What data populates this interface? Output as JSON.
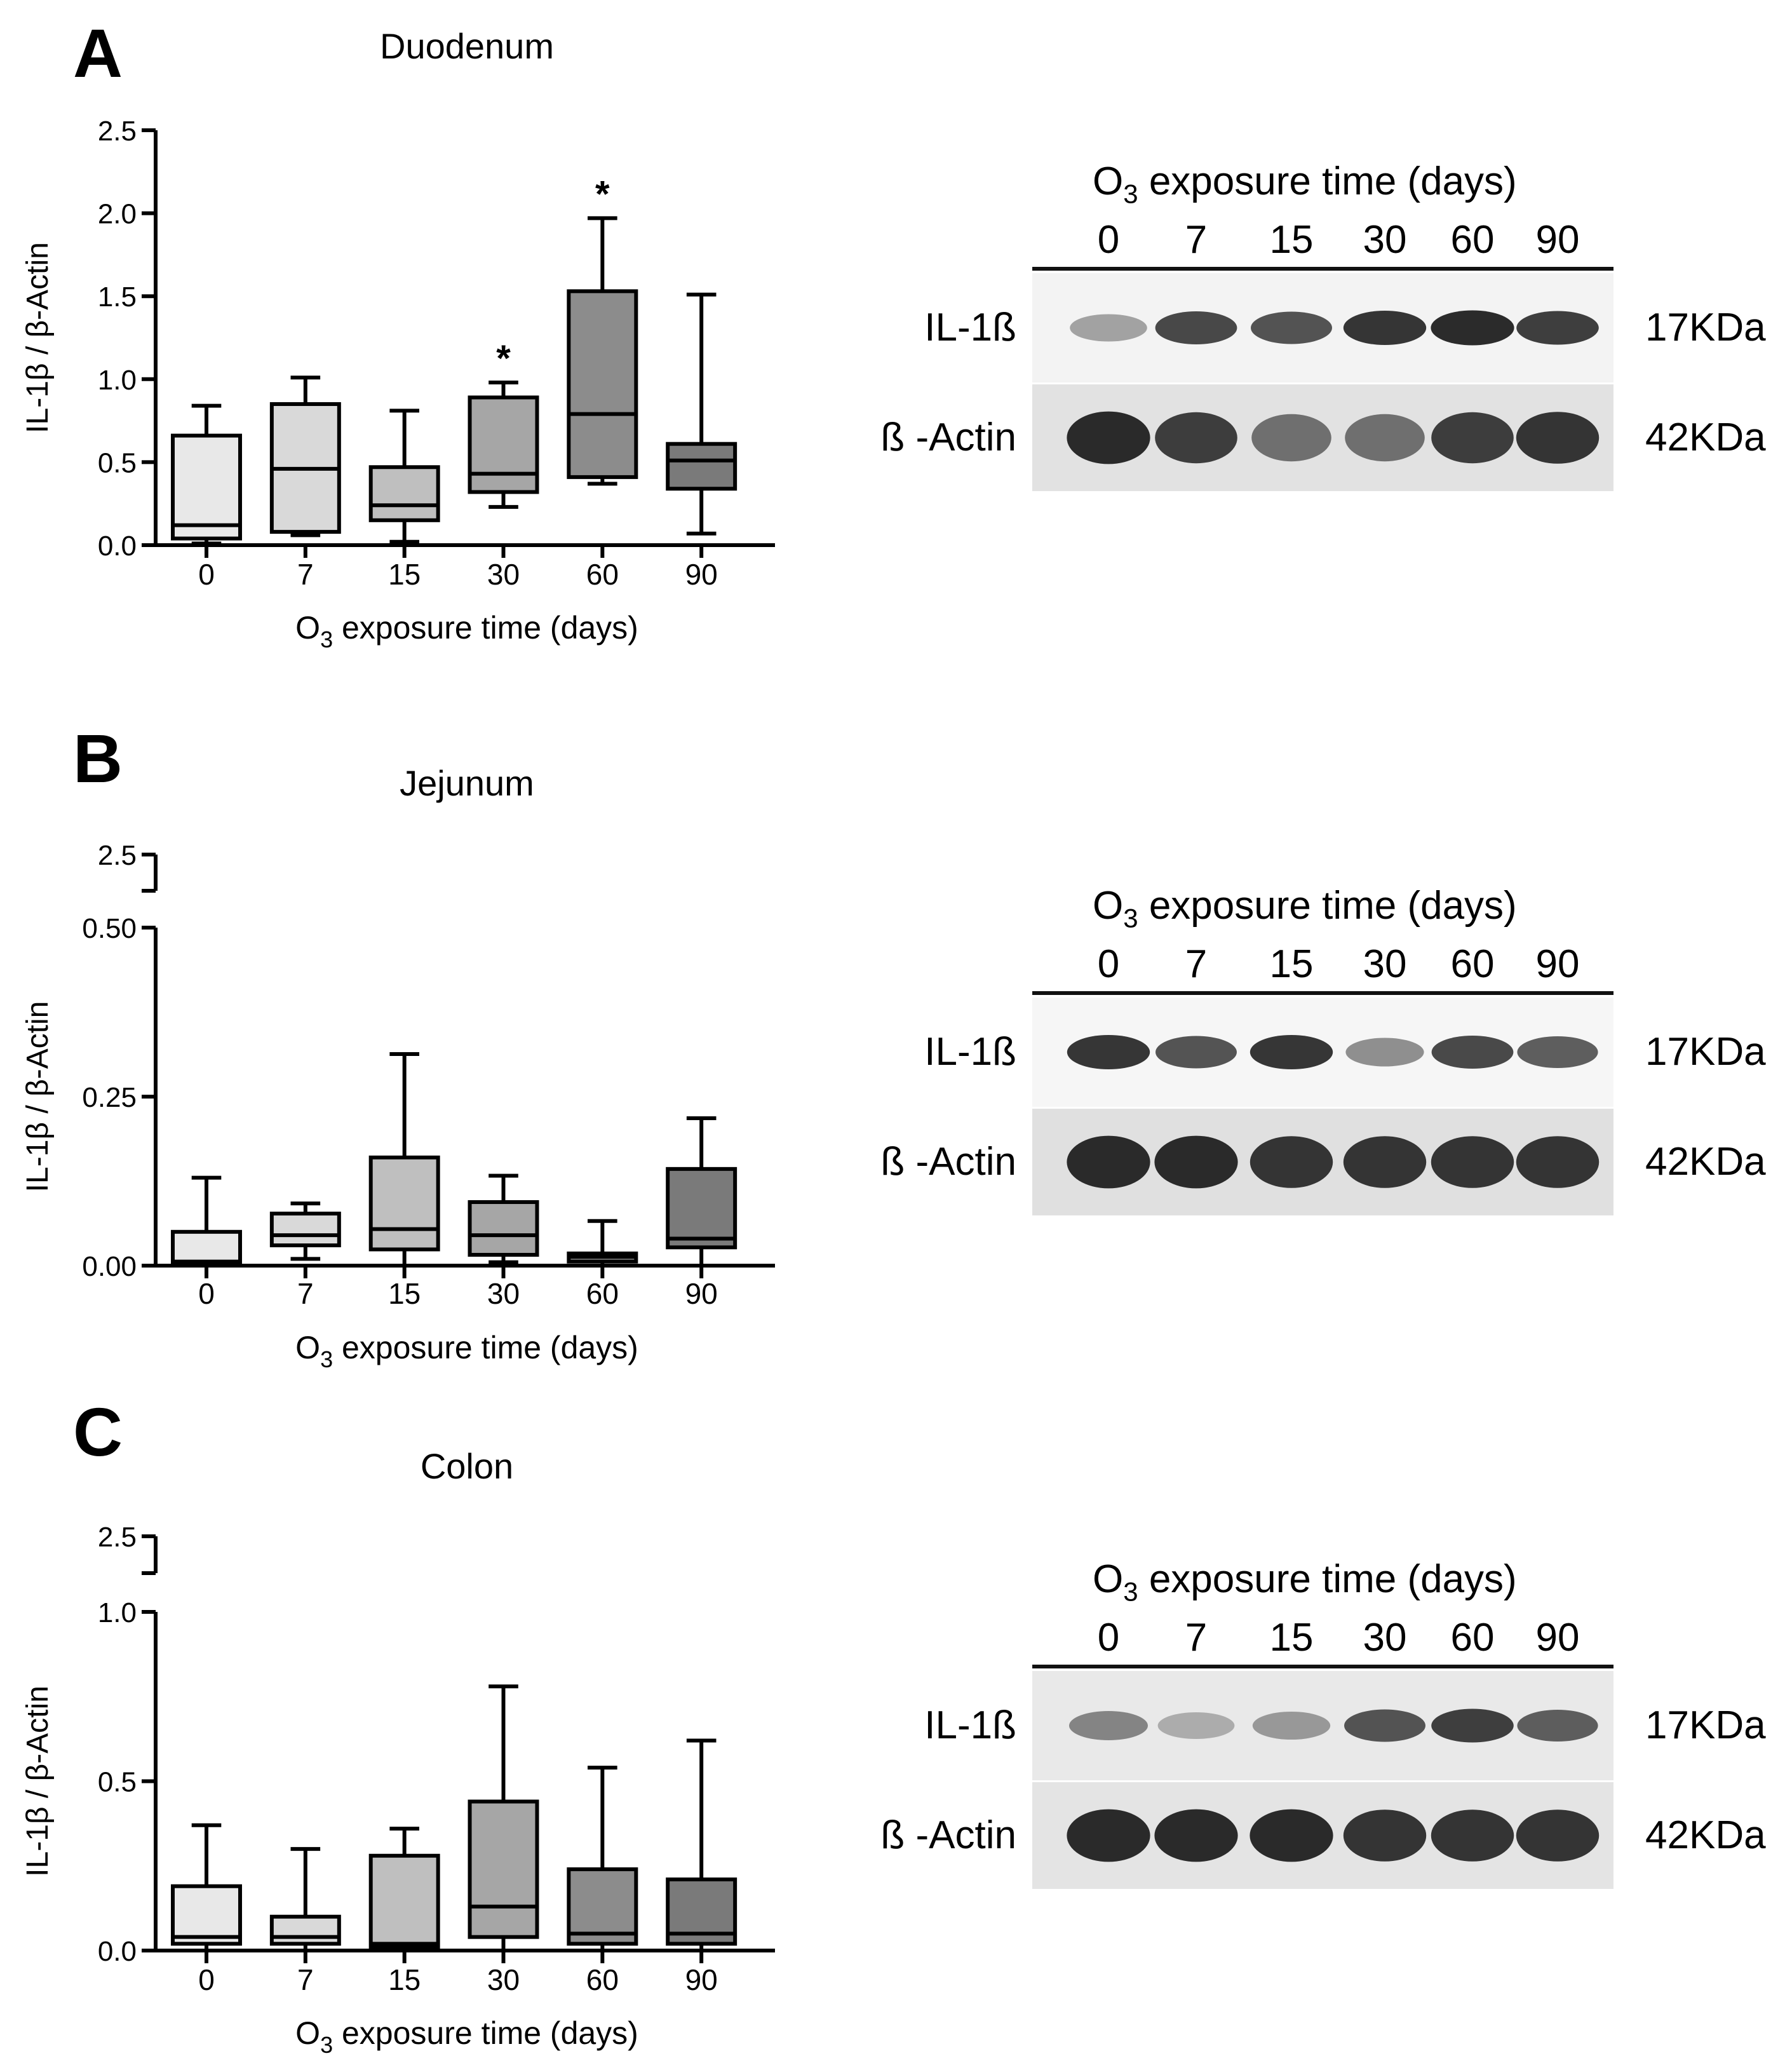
{
  "chart_data": [
    {
      "type": "boxplot",
      "panel": "A",
      "title": "Duodenum",
      "xlabel": "O3 exposure time (days)",
      "xlabel_main": "O",
      "xlabel_sub": "3",
      "xlabel_rest": " exposure time (days)",
      "ylabel": "IL-1β / β-Actin",
      "categories": [
        "0",
        "7",
        "15",
        "30",
        "60",
        "90"
      ],
      "yticks": [
        "0.0",
        "0.5",
        "1.0",
        "1.5",
        "2.0",
        "2.5"
      ],
      "ylim": [
        0,
        2.5
      ],
      "boxes": [
        {
          "min": 0.01,
          "q1": 0.04,
          "median": 0.12,
          "q3": 0.66,
          "max": 0.84,
          "fill": "#e8e8e8"
        },
        {
          "min": 0.06,
          "q1": 0.08,
          "median": 0.46,
          "q3": 0.85,
          "max": 1.01,
          "fill": "#d9d9d9"
        },
        {
          "min": 0.02,
          "q1": 0.15,
          "median": 0.24,
          "q3": 0.47,
          "max": 0.81,
          "fill": "#bfbfbf"
        },
        {
          "min": 0.23,
          "q1": 0.32,
          "median": 0.43,
          "q3": 0.89,
          "max": 0.98,
          "fill": "#a6a6a6"
        },
        {
          "min": 0.37,
          "q1": 0.41,
          "median": 0.79,
          "q3": 1.53,
          "max": 1.97,
          "fill": "#8c8c8c"
        },
        {
          "min": 0.07,
          "q1": 0.34,
          "median": 0.51,
          "q3": 0.61,
          "max": 1.51,
          "fill": "#7a7a7a"
        }
      ],
      "annotations": [
        {
          "category": "30",
          "text": "*"
        },
        {
          "category": "60",
          "text": "*"
        }
      ]
    },
    {
      "type": "boxplot",
      "panel": "B",
      "title": "Jejunum",
      "xlabel": "O3 exposure time (days)",
      "xlabel_main": "O",
      "xlabel_sub": "3",
      "xlabel_rest": " exposure time (days)",
      "ylabel": "IL-1β / β-Actin",
      "categories": [
        "0",
        "7",
        "15",
        "30",
        "60",
        "90"
      ],
      "yticks": [
        "0.00",
        "0.25",
        "0.50"
      ],
      "ytick_break": "2.5",
      "ylim": [
        0,
        0.5
      ],
      "boxes": [
        {
          "min": 0.0,
          "q1": 0.004,
          "median": 0.006,
          "q3": 0.05,
          "max": 0.13,
          "fill": "#e8e8e8"
        },
        {
          "min": 0.01,
          "q1": 0.03,
          "median": 0.045,
          "q3": 0.077,
          "max": 0.092,
          "fill": "#d9d9d9"
        },
        {
          "min": 0.0,
          "q1": 0.024,
          "median": 0.054,
          "q3": 0.16,
          "max": 0.313,
          "fill": "#bfbfbf"
        },
        {
          "min": 0.005,
          "q1": 0.016,
          "median": 0.045,
          "q3": 0.094,
          "max": 0.133,
          "fill": "#a6a6a6"
        },
        {
          "min": 0.0,
          "q1": 0.006,
          "median": 0.013,
          "q3": 0.018,
          "max": 0.066,
          "fill": "#8c8c8c"
        },
        {
          "min": 0.0,
          "q1": 0.027,
          "median": 0.04,
          "q3": 0.143,
          "max": 0.218,
          "fill": "#7a7a7a"
        }
      ]
    },
    {
      "type": "boxplot",
      "panel": "C",
      "title": "Colon",
      "xlabel": "O3 exposure time (days)",
      "xlabel_main": "O",
      "xlabel_sub": "3",
      "xlabel_rest": " exposure time (days)",
      "ylabel": "IL-1β / β-Actin",
      "categories": [
        "0",
        "7",
        "15",
        "30",
        "60",
        "90"
      ],
      "yticks": [
        "0.0",
        "0.5",
        "1.0"
      ],
      "ytick_break": "2.5",
      "ylim": [
        0,
        1.0
      ],
      "boxes": [
        {
          "min": 0.0,
          "q1": 0.02,
          "median": 0.04,
          "q3": 0.19,
          "max": 0.37,
          "fill": "#e8e8e8"
        },
        {
          "min": 0.0,
          "q1": 0.02,
          "median": 0.04,
          "q3": 0.1,
          "max": 0.3,
          "fill": "#d9d9d9"
        },
        {
          "min": 0.0,
          "q1": 0.01,
          "median": 0.02,
          "q3": 0.28,
          "max": 0.36,
          "fill": "#bfbfbf"
        },
        {
          "min": 0.0,
          "q1": 0.04,
          "median": 0.13,
          "q3": 0.44,
          "max": 0.78,
          "fill": "#a6a6a6"
        },
        {
          "min": 0.0,
          "q1": 0.02,
          "median": 0.05,
          "q3": 0.24,
          "max": 0.54,
          "fill": "#8c8c8c"
        },
        {
          "min": 0.0,
          "q1": 0.02,
          "median": 0.05,
          "q3": 0.21,
          "max": 0.62,
          "fill": "#7a7a7a"
        }
      ]
    }
  ],
  "blots": [
    {
      "panel": "A",
      "header_main": "O",
      "header_sub": "3",
      "header_rest": " exposure time (days)",
      "lanes": [
        "0",
        "7",
        "15",
        "30",
        "60",
        "90"
      ],
      "bands": [
        {
          "label": "IL-1ß",
          "size": "17KDa",
          "intensities": [
            0.35,
            0.8,
            0.75,
            0.9,
            0.95,
            0.85
          ],
          "bg": "#f3f3f3"
        },
        {
          "label": "ß -Actin",
          "size": "42KDa",
          "intensities": [
            0.95,
            0.85,
            0.6,
            0.6,
            0.85,
            0.9
          ],
          "bg": "#e2e2e2"
        }
      ]
    },
    {
      "panel": "B",
      "header_main": "O",
      "header_sub": "3",
      "header_rest": " exposure time (days)",
      "lanes": [
        "0",
        "7",
        "15",
        "30",
        "60",
        "90"
      ],
      "bands": [
        {
          "label": "IL-1ß",
          "size": "17KDa",
          "intensities": [
            0.9,
            0.75,
            0.9,
            0.45,
            0.8,
            0.7
          ],
          "bg": "#f6f6f6"
        },
        {
          "label": "ß -Actin",
          "size": "42KDa",
          "intensities": [
            0.95,
            0.95,
            0.9,
            0.9,
            0.9,
            0.9
          ],
          "bg": "#e0e0e0"
        }
      ]
    },
    {
      "panel": "C",
      "header_main": "O",
      "header_sub": "3",
      "header_rest": " exposure time (days)",
      "lanes": [
        "0",
        "7",
        "15",
        "30",
        "60",
        "90"
      ],
      "bands": [
        {
          "label": "IL-1ß",
          "size": "17KDa",
          "intensities": [
            0.5,
            0.3,
            0.4,
            0.75,
            0.85,
            0.7
          ],
          "bg": "#e9e9e9"
        },
        {
          "label": "ß -Actin",
          "size": "42KDa",
          "intensities": [
            0.95,
            0.95,
            0.95,
            0.9,
            0.9,
            0.9
          ],
          "bg": "#e4e4e4"
        }
      ]
    }
  ]
}
